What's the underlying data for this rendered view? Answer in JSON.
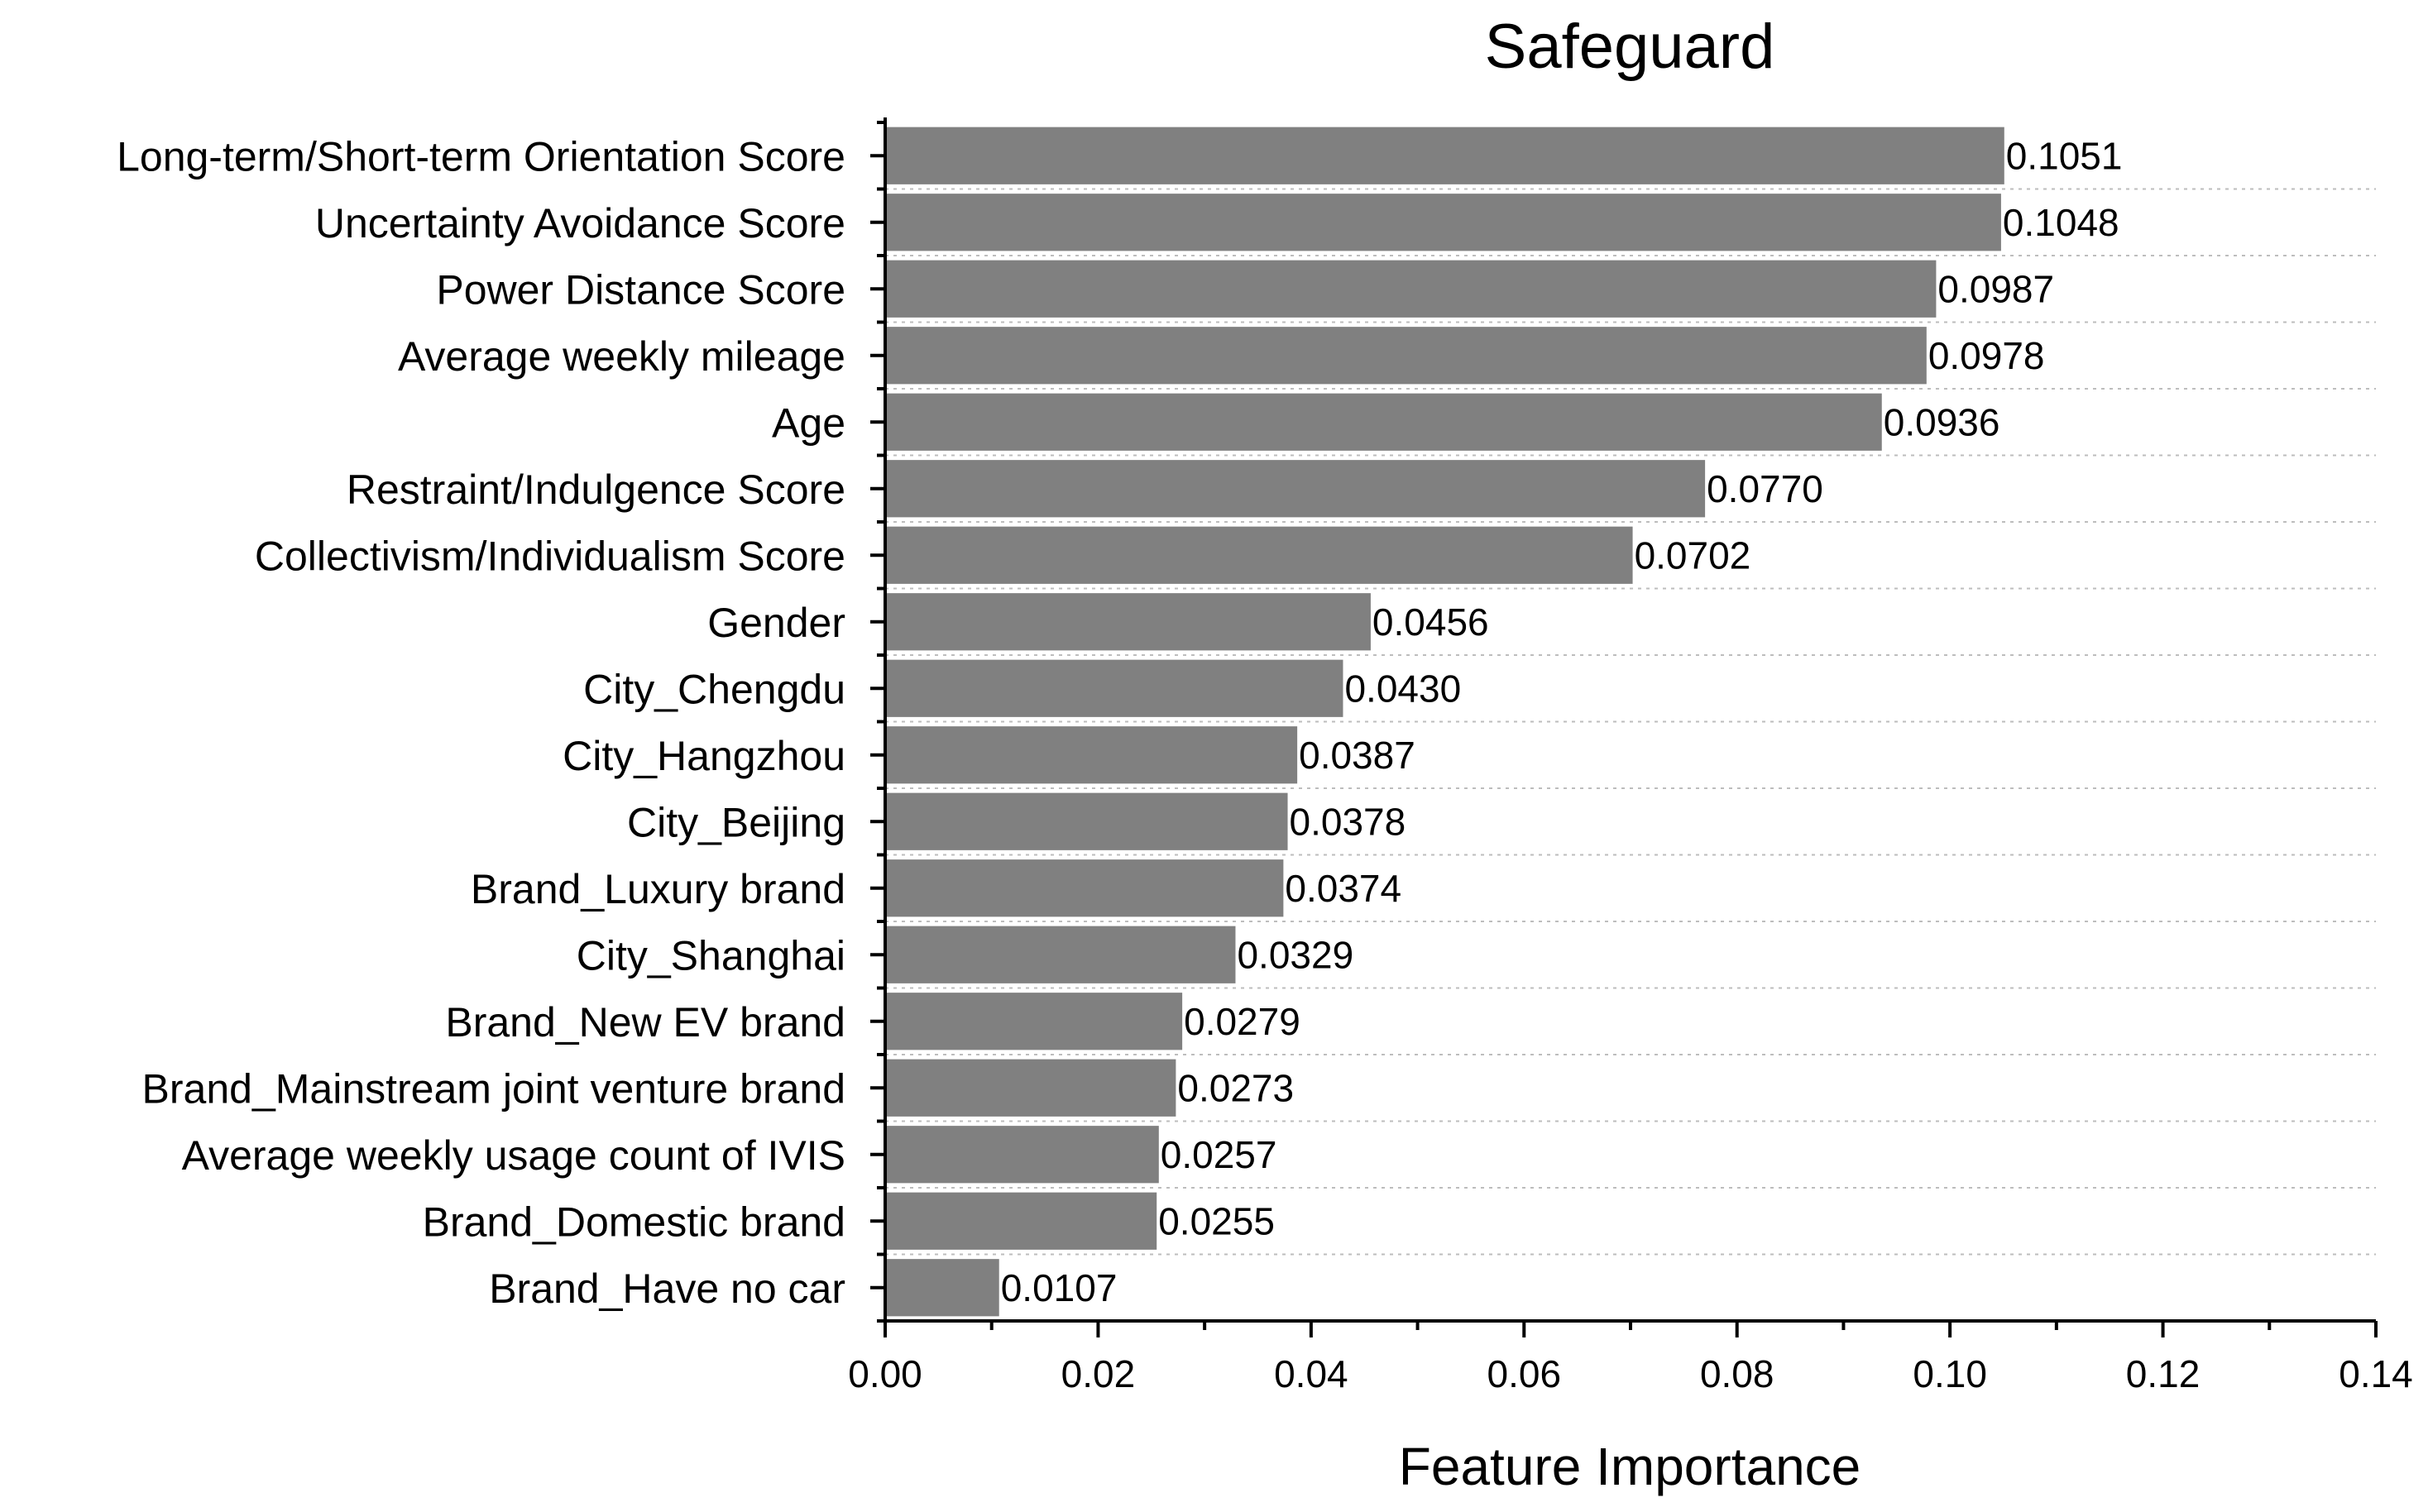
{
  "chart_data": {
    "type": "bar",
    "orientation": "horizontal",
    "title": "Safeguard",
    "xlabel": "Feature Importance",
    "ylabel": "",
    "xlim": [
      0,
      0.14
    ],
    "x_ticks": [
      "0.00",
      "0.02",
      "0.04",
      "0.06",
      "0.08",
      "0.10",
      "0.12",
      "0.14"
    ],
    "grid": "horizontal dashed",
    "bar_color": "#808080",
    "categories": [
      "Long-term/Short-term Orientation Score",
      "Uncertainty Avoidance Score",
      "Power Distance Score",
      "Average weekly mileage",
      "Age",
      "Restraint/Indulgence Score",
      "Collectivism/Individualism Score",
      "Gender",
      "City_Chengdu",
      "City_Hangzhou",
      "City_Beijing",
      "Brand_Luxury brand",
      "City_Shanghai",
      "Brand_New EV brand",
      "Brand_Mainstream joint venture brand",
      "Average weekly usage count of IVIS",
      "Brand_Domestic brand",
      "Brand_Have no car"
    ],
    "values": [
      0.1051,
      0.1048,
      0.0987,
      0.0978,
      0.0936,
      0.077,
      0.0702,
      0.0456,
      0.043,
      0.0387,
      0.0378,
      0.0374,
      0.0329,
      0.0279,
      0.0273,
      0.0257,
      0.0255,
      0.0107
    ],
    "value_labels": [
      "0.1051",
      "0.1048",
      "0.0987",
      "0.0978",
      "0.0936",
      "0.0770",
      "0.0702",
      "0.0456",
      "0.0430",
      "0.0387",
      "0.0378",
      "0.0374",
      "0.0329",
      "0.0279",
      "0.0273",
      "0.0257",
      "0.0255",
      "0.0107"
    ]
  }
}
